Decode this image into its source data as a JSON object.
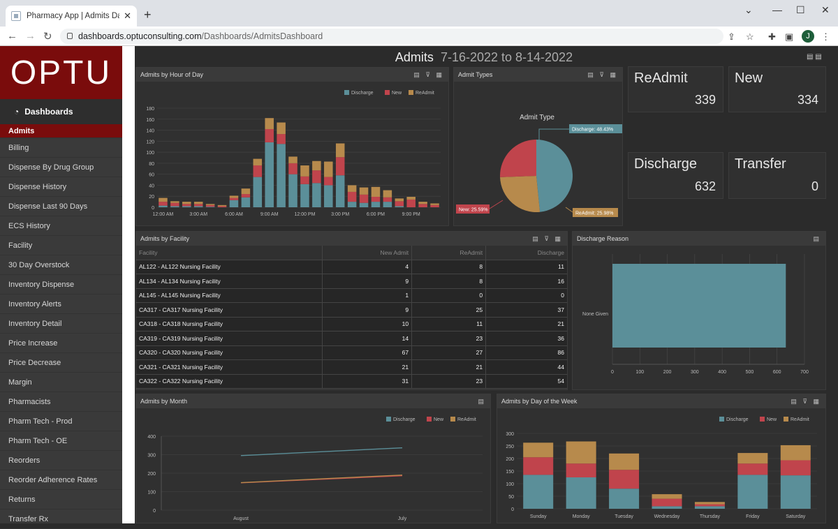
{
  "browser": {
    "tab_title": "Pharmacy App | Admits Dashboa",
    "url_domain": "dashboards.optuconsulting.com",
    "url_path": "/Dashboards/AdmitsDashboard",
    "avatar": "J"
  },
  "sidebar": {
    "logo": "OPTU",
    "dashboards_label": "Dashboards",
    "items": [
      "Admits",
      "Billing",
      "Dispense By Drug Group",
      "Dispense History",
      "Dispense Last 90 Days",
      "ECS History",
      "Facility",
      "30 Day Overstock",
      "Inventory Dispense",
      "Inventory Alerts",
      "Inventory Detail",
      "Price Increase",
      "Price Decrease",
      "Margin",
      "Pharmacists",
      "Pharm Tech - Prod",
      "Pharm Tech - OE",
      "Reorders",
      "Reorder Adherence Rates",
      "Returns",
      "Transfer Rx"
    ]
  },
  "header": {
    "title": "Admits",
    "range": "7-16-2022 to 8-14-2022"
  },
  "kpis": [
    {
      "label": "ReAdmit",
      "value": "339"
    },
    {
      "label": "New",
      "value": "334"
    },
    {
      "label": "Discharge",
      "value": "632"
    },
    {
      "label": "Transfer",
      "value": "0"
    }
  ],
  "panels": {
    "hour": "Admits by Hour of Day",
    "types": "Admit Types",
    "facility": "Admits by Facility",
    "reason": "Discharge Reason",
    "month": "Admits by Month",
    "week": "Admits by Day of the Week"
  },
  "colors": {
    "discharge": "#5b8f99",
    "new": "#c0444c",
    "readmit": "#b78a4c"
  },
  "facility_table": {
    "columns": [
      "Facility",
      "New Admit",
      "ReAdmit",
      "Discharge"
    ],
    "rows": [
      [
        "AL122 - AL122 Nursing Facility",
        "4",
        "8",
        "11"
      ],
      [
        "AL134 - AL134 Nursing Facility",
        "9",
        "8",
        "16"
      ],
      [
        "AL145 - AL145 Nursing Facility",
        "1",
        "0",
        "0"
      ],
      [
        "CA317 - CA317 Nursing Facility",
        "9",
        "25",
        "37"
      ],
      [
        "CA318 - CA318 Nursing Facility",
        "10",
        "11",
        "21"
      ],
      [
        "CA319 - CA319 Nursing Facility",
        "14",
        "23",
        "36"
      ],
      [
        "CA320 - CA320 Nursing Facility",
        "67",
        "27",
        "86"
      ],
      [
        "CA321 - CA321 Nursing Facility",
        "21",
        "21",
        "44"
      ],
      [
        "CA322 - CA322 Nursing Facility",
        "31",
        "23",
        "54"
      ]
    ]
  },
  "chart_data": [
    {
      "type": "bar",
      "title": "Admits by Hour of Day",
      "stacked": true,
      "legend": [
        "Discharge",
        "New",
        "ReAdmit"
      ],
      "ylim": [
        0,
        180
      ],
      "yticks": [
        0,
        20,
        40,
        60,
        80,
        100,
        120,
        140,
        160,
        180
      ],
      "xtick_labels": [
        "12:00 AM",
        "3:00 AM",
        "6:00 AM",
        "9:00 AM",
        "12:00 PM",
        "3:00 PM",
        "6:00 PM",
        "9:00 PM"
      ],
      "series": [
        {
          "name": "Discharge",
          "values": [
            3,
            2,
            2,
            2,
            1,
            0,
            13,
            18,
            55,
            118,
            115,
            60,
            42,
            44,
            40,
            58,
            10,
            8,
            10,
            10,
            2,
            0,
            0,
            0
          ]
        },
        {
          "name": "New",
          "values": [
            7,
            6,
            4,
            4,
            3,
            2,
            4,
            6,
            21,
            24,
            18,
            20,
            14,
            23,
            15,
            33,
            18,
            15,
            9,
            8,
            9,
            14,
            6,
            4
          ]
        },
        {
          "name": "ReAdmit",
          "values": [
            7,
            3,
            4,
            4,
            2,
            2,
            4,
            10,
            12,
            20,
            21,
            12,
            20,
            17,
            28,
            25,
            12,
            13,
            18,
            13,
            5,
            5,
            4,
            3
          ]
        }
      ]
    },
    {
      "type": "pie",
      "title": "Admit Type",
      "slices": [
        {
          "label": "Discharge",
          "value": 48.43
        },
        {
          "label": "New",
          "value": 25.59
        },
        {
          "label": "ReAdmit",
          "value": 25.98
        }
      ],
      "slice_labels": [
        "Discharge: 48.43%",
        "New: 25.59%",
        "ReAdmit: 25.98%"
      ]
    },
    {
      "type": "bar",
      "orientation": "horizontal",
      "title": "Discharge Reason",
      "categories": [
        "None Given"
      ],
      "values": [
        632
      ],
      "xlim": [
        0,
        700
      ],
      "xticks": [
        "0",
        "100",
        "200",
        "300",
        "400",
        "500",
        "600",
        "700"
      ]
    },
    {
      "type": "line",
      "title": "Admits by Month",
      "categories": [
        "August",
        "July"
      ],
      "ylim": [
        0,
        400
      ],
      "yticks": [
        0,
        100,
        200,
        300,
        400
      ],
      "series": [
        {
          "name": "Discharge",
          "values": [
            295,
            337
          ]
        },
        {
          "name": "New",
          "values": [
            148,
            186
          ]
        },
        {
          "name": "ReAdmit",
          "values": [
            149,
            190
          ]
        }
      ]
    },
    {
      "type": "bar",
      "title": "Admits by Day of the Week",
      "stacked": true,
      "ylim": [
        0,
        300
      ],
      "yticks": [
        0,
        50,
        100,
        150,
        200,
        250,
        300
      ],
      "categories": [
        "Sunday",
        "Monday",
        "Tuesday",
        "Wednesday",
        "Thursday",
        "Friday",
        "Saturday"
      ],
      "series": [
        {
          "name": "Discharge",
          "values": [
            135,
            125,
            80,
            10,
            10,
            135,
            133
          ]
        },
        {
          "name": "New",
          "values": [
            70,
            55,
            75,
            30,
            8,
            45,
            60
          ]
        },
        {
          "name": "ReAdmit",
          "values": [
            58,
            88,
            65,
            18,
            9,
            42,
            60
          ]
        }
      ]
    }
  ]
}
